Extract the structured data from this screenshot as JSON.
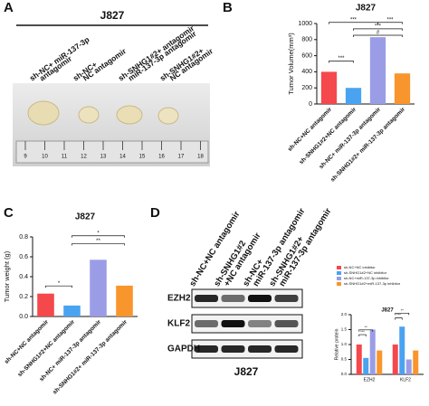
{
  "panel_labels": [
    "A",
    "B",
    "C",
    "D"
  ],
  "photo": {
    "title": "J827",
    "labels": [
      [
        "sh-NC+ miR-137-3p",
        "antagomir"
      ],
      [
        "sh-NC+",
        "NC antagomir"
      ],
      [
        "sh-SNHG1#2+ antagomir",
        "miR-137-3p antagomir"
      ],
      [
        "sh-SNHG1#2+",
        "NC antagomir"
      ]
    ],
    "ruler": [
      "9",
      "10",
      "11",
      "12",
      "13",
      "14",
      "15",
      "16",
      "17",
      "18"
    ]
  },
  "blot": {
    "title": "J827",
    "lanes": [
      [
        "sh-NC+NC antagomir"
      ],
      [
        "sh-SNHG1#2",
        "+NC antagomir"
      ],
      [
        "sh-NC+",
        "miR-137-3p antagomir"
      ],
      [
        "sh-SNHG1#2+",
        "miR-137-3p antagomir"
      ]
    ],
    "proteins": [
      "EZH2",
      "KLF2",
      "GAPDH"
    ]
  },
  "chart_data": [
    {
      "type": "bar",
      "title": "J827",
      "ylabel": "Tumor Volume(mm³)",
      "categories": [
        "sh-NC+NC antagomir",
        "sh-SNHG1#2+NC antagomir",
        "sh-NC+ miR-137-3p antagomir",
        "sh-SNHG1#2+ miR-137-3p antagomir"
      ],
      "values": [
        400,
        200,
        830,
        380
      ],
      "colors": [
        "#f4484c",
        "#4aa3f0",
        "#9a9de6",
        "#f8952c"
      ],
      "ylim": [
        0,
        1000
      ],
      "yticks": [
        0,
        200,
        400,
        600,
        800,
        1000
      ],
      "annotations": [
        "***",
        "***",
        "***",
        "#",
        "***"
      ]
    },
    {
      "type": "bar",
      "title": "J827",
      "ylabel": "Tumor weight (g)",
      "categories": [
        "sh-NC+NC antagomir",
        "sh-SNHG1#2+NC antagomir",
        "sh-NC+ miR-137-3p antagomir",
        "sh-SNHG1#2+ miR-137-3p antagomir"
      ],
      "values": [
        0.23,
        0.11,
        0.57,
        0.31
      ],
      "colors": [
        "#f4484c",
        "#4aa3f0",
        "#9a9de6",
        "#f8952c"
      ],
      "ylim": [
        0,
        0.8
      ],
      "yticks": [
        {
          "value": 0,
          "label": "0.0"
        },
        0.2,
        0.4,
        0.6,
        0.8
      ],
      "annotations": [
        "*",
        "*",
        "**"
      ]
    },
    {
      "type": "grouped-bar",
      "title": "J827",
      "ylabel": "Relative protein",
      "categories": [
        "EZH2",
        "KLF2"
      ],
      "series": [
        {
          "name": "sh-NC+NC inhibitor",
          "color": "#f4484c",
          "values": [
            1.0,
            1.0
          ]
        },
        {
          "name": "sh-SNHG1#2+NC inhibitor",
          "color": "#4aa3f0",
          "values": [
            0.55,
            1.6
          ]
        },
        {
          "name": "sh-NC+miR-137-3p inhibitor",
          "color": "#9a9de6",
          "values": [
            1.5,
            0.5
          ]
        },
        {
          "name": "sh-SNHG1#2+miR-137-3p inhibitor",
          "color": "#f8952c",
          "values": [
            0.8,
            0.8
          ]
        }
      ],
      "ylim": [
        0,
        2
      ],
      "yticks": [
        {
          "value": 0,
          "label": "0.0"
        },
        {
          "value": 0.5,
          "label": "0.5"
        },
        {
          "value": 1,
          "label": "1.0"
        },
        {
          "value": 1.5,
          "label": "1.5"
        },
        {
          "value": 2,
          "label": "2.0"
        }
      ],
      "annotations": [
        "***",
        "**",
        "***",
        "**"
      ]
    }
  ]
}
